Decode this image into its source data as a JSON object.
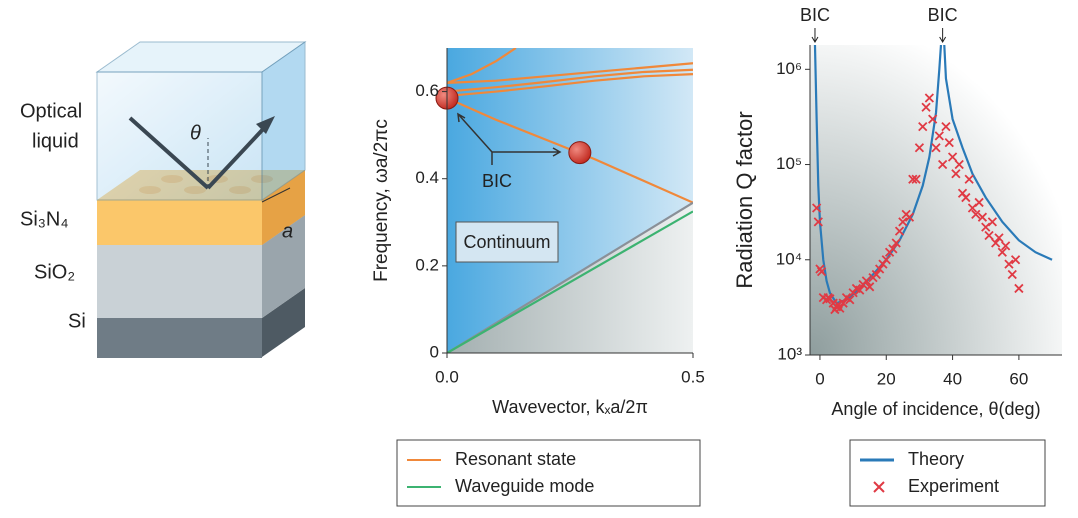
{
  "diagram": {
    "labels": {
      "liquid_1": "Optical",
      "liquid_2": "liquid",
      "si3n4": "Si₃N₄",
      "sio2": "SiO₂",
      "si": "Si",
      "theta": "θ",
      "a": "a"
    }
  },
  "chart_data": [
    {
      "type": "line",
      "x_label": "Wavevector, kₓa/2π",
      "y_label": "Frequency, ωa/2πc",
      "xlim": [
        0,
        0.5
      ],
      "ylim": [
        0,
        0.7
      ],
      "xticks": [
        {
          "value": 0,
          "label": "0.0"
        },
        0.5
      ],
      "yticks": [
        0,
        0.2,
        0.4,
        0.6
      ],
      "legend": "bottom",
      "series": [
        {
          "name": "Resonant state",
          "color": "#f0883a",
          "x": [
            0,
            0.1,
            0.2,
            0.3,
            0.4,
            0.5
          ],
          "values": [
            0.585,
            0.535,
            0.49,
            0.445,
            0.395,
            0.345
          ]
        },
        {
          "color": "#f0883a",
          "x": [
            0,
            0.1,
            0.2,
            0.3,
            0.4,
            0.5
          ],
          "values": [
            0.59,
            0.6,
            0.612,
            0.625,
            0.635,
            0.64
          ]
        },
        {
          "color": "#f0883a",
          "x": [
            0,
            0.1,
            0.2,
            0.3,
            0.4,
            0.5
          ],
          "values": [
            0.6,
            0.61,
            0.622,
            0.635,
            0.645,
            0.65
          ]
        },
        {
          "color": "#f0883a",
          "x": [
            0,
            0.05,
            0.1,
            0.14
          ],
          "values": [
            0.62,
            0.64,
            0.67,
            0.7
          ]
        },
        {
          "color": "#f0883a",
          "x": [
            0,
            0.1,
            0.2,
            0.3,
            0.4,
            0.5
          ],
          "values": [
            0.62,
            0.625,
            0.635,
            0.645,
            0.655,
            0.665
          ]
        },
        {
          "color": "#8a9098",
          "x": [
            0,
            0.5
          ],
          "values": [
            0,
            0.345
          ]
        },
        {
          "name": "Waveguide mode",
          "color": "#3cb371",
          "x": [
            0,
            0.5
          ],
          "values": [
            0,
            0.325
          ]
        }
      ],
      "bic_points": {
        "color": "#e5413a",
        "x": [
          0,
          0.27
        ],
        "values": [
          0.585,
          0.46
        ]
      },
      "annotations": [
        "BIC",
        "Continuum"
      ]
    },
    {
      "type": "line",
      "x_label": "Angle of incidence, θ(deg)",
      "y_label": "Radiation Q factor",
      "log_scale": "y",
      "xlim": [
        -3,
        73
      ],
      "ylim": [
        1000,
        1800000
      ],
      "xticks": [
        0,
        20,
        40,
        60
      ],
      "yticks": [
        {
          "value": 1000,
          "label": "10³"
        },
        {
          "value": 10000,
          "label": "10⁴"
        },
        {
          "value": 100000,
          "label": "10⁵"
        },
        {
          "value": 1000000,
          "label": "10⁶"
        }
      ],
      "legend": "bottom",
      "series": [
        {
          "name": "Theory",
          "color": "#2a7ab8",
          "kind": "line",
          "x": [
            -1.5,
            -1,
            -0.5,
            0,
            1,
            2,
            3,
            5,
            8,
            12,
            16,
            20,
            24,
            28,
            31,
            33,
            35,
            36,
            36.5,
            37,
            37.5,
            38,
            40,
            43,
            46,
            50,
            55,
            60,
            65,
            70
          ],
          "values": [
            1800000,
            300000,
            60000,
            25000,
            10000,
            6000,
            4500,
            3500,
            3800,
            5000,
            7000,
            10000,
            16000,
            30000,
            60000,
            120000,
            350000,
            1000000,
            1800000,
            null,
            1800000,
            800000,
            300000,
            150000,
            80000,
            45000,
            25000,
            16000,
            12000,
            10000
          ]
        },
        {
          "name": "Experiment",
          "color": "#e03a44",
          "kind": "scatter",
          "x": [
            -1,
            -0.5,
            0,
            0.5,
            1,
            2,
            2.5,
            3,
            4,
            4.5,
            5,
            5.5,
            6,
            7,
            8,
            9,
            10,
            11,
            12,
            13,
            14,
            15,
            16,
            17,
            18,
            19,
            20,
            21,
            22,
            23,
            24,
            25,
            26,
            27,
            28,
            29,
            30,
            31,
            32,
            33,
            34,
            35,
            36,
            37,
            38,
            39,
            40,
            41,
            42,
            43,
            44,
            45,
            46,
            47,
            48,
            49,
            50,
            51,
            52,
            53,
            54,
            55,
            56,
            57,
            58,
            59,
            60
          ],
          "values": [
            35000,
            25000,
            8000,
            7500,
            4000,
            3800,
            4000,
            3900,
            3500,
            3000,
            3200,
            3400,
            3100,
            3500,
            4000,
            3800,
            4500,
            5000,
            4800,
            5500,
            6000,
            5200,
            6500,
            7000,
            8000,
            9000,
            10000,
            12000,
            13000,
            15000,
            20000,
            25000,
            30000,
            28000,
            70000,
            70000,
            150000,
            250000,
            400000,
            500000,
            300000,
            150000,
            200000,
            100000,
            250000,
            170000,
            120000,
            80000,
            100000,
            50000,
            45000,
            70000,
            35000,
            30000,
            40000,
            28000,
            22000,
            18000,
            25000,
            15000,
            17000,
            12000,
            14000,
            9000,
            7000,
            10000,
            5000
          ]
        }
      ],
      "annotations": [
        {
          "text": "BIC",
          "x": -1.5
        },
        {
          "text": "BIC",
          "x": 37
        }
      ]
    }
  ]
}
